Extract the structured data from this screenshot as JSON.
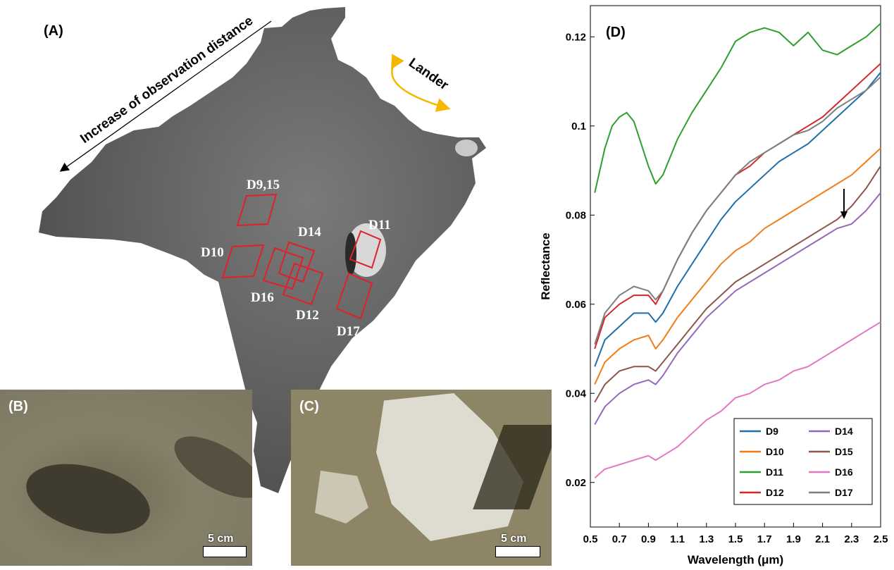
{
  "panels": {
    "a": {
      "label": "(A)",
      "arrow_text": "Increase of observation distance",
      "lander_text": "Lander",
      "region_labels": [
        "D9,15",
        "D14",
        "D11",
        "D10",
        "D16",
        "D12",
        "D17"
      ]
    },
    "b": {
      "label": "(B)",
      "scale_text": "5 cm"
    },
    "c": {
      "label": "(C)",
      "scale_text": "5 cm"
    },
    "d": {
      "label": "(D)"
    }
  },
  "colors": {
    "region_box": "#e0202a",
    "lander_arrow": "#f5b800"
  },
  "chart_data": {
    "type": "line",
    "xlabel": "Wavelength (μm)",
    "ylabel": "Reflectance",
    "xlim": [
      0.5,
      2.5
    ],
    "ylim": [
      0.01,
      0.127
    ],
    "xticks": [
      "0.5",
      "0.7",
      "0.9",
      "1.1",
      "1.3",
      "1.5",
      "1.7",
      "1.9",
      "2.1",
      "2.3",
      "2.5"
    ],
    "yticks": [
      "0.02",
      "0.04",
      "0.06",
      "0.08",
      "0.1",
      "0.12"
    ],
    "legend_position": "bottom-right",
    "annotation": "downward arrow near 2.25 μm on D15",
    "series": [
      {
        "name": "D9",
        "color": "#1f6faa",
        "x": [
          0.53,
          0.6,
          0.7,
          0.8,
          0.9,
          0.95,
          1.0,
          1.1,
          1.2,
          1.3,
          1.4,
          1.5,
          1.6,
          1.7,
          1.8,
          1.9,
          2.0,
          2.1,
          2.2,
          2.3,
          2.4,
          2.5
        ],
        "y": [
          0.046,
          0.052,
          0.055,
          0.058,
          0.058,
          0.056,
          0.058,
          0.064,
          0.069,
          0.074,
          0.079,
          0.083,
          0.086,
          0.089,
          0.092,
          0.094,
          0.096,
          0.099,
          0.102,
          0.105,
          0.108,
          0.112
        ]
      },
      {
        "name": "D10",
        "color": "#f07d1a",
        "x": [
          0.53,
          0.6,
          0.7,
          0.8,
          0.9,
          0.95,
          1.0,
          1.1,
          1.2,
          1.3,
          1.4,
          1.5,
          1.6,
          1.7,
          1.8,
          1.9,
          2.0,
          2.1,
          2.2,
          2.3,
          2.4,
          2.5
        ],
        "y": [
          0.042,
          0.047,
          0.05,
          0.052,
          0.053,
          0.05,
          0.052,
          0.057,
          0.061,
          0.065,
          0.069,
          0.072,
          0.074,
          0.077,
          0.079,
          0.081,
          0.083,
          0.085,
          0.087,
          0.089,
          0.092,
          0.095
        ]
      },
      {
        "name": "D11",
        "color": "#2ca02c",
        "x": [
          0.53,
          0.6,
          0.65,
          0.7,
          0.75,
          0.8,
          0.85,
          0.9,
          0.95,
          1.0,
          1.1,
          1.2,
          1.3,
          1.4,
          1.5,
          1.6,
          1.7,
          1.8,
          1.9,
          2.0,
          2.1,
          2.2,
          2.3,
          2.4,
          2.5
        ],
        "y": [
          0.085,
          0.095,
          0.1,
          0.102,
          0.103,
          0.101,
          0.096,
          0.091,
          0.087,
          0.089,
          0.097,
          0.103,
          0.108,
          0.113,
          0.119,
          0.121,
          0.122,
          0.121,
          0.118,
          0.121,
          0.117,
          0.116,
          0.118,
          0.12,
          0.123
        ]
      },
      {
        "name": "D12",
        "color": "#d62728",
        "x": [
          0.53,
          0.6,
          0.7,
          0.8,
          0.9,
          0.95,
          1.0,
          1.1,
          1.2,
          1.3,
          1.4,
          1.5,
          1.6,
          1.7,
          1.8,
          1.9,
          2.0,
          2.1,
          2.2,
          2.3,
          2.4,
          2.5
        ],
        "y": [
          0.05,
          0.057,
          0.06,
          0.062,
          0.062,
          0.06,
          0.063,
          0.07,
          0.076,
          0.081,
          0.085,
          0.089,
          0.091,
          0.094,
          0.096,
          0.098,
          0.1,
          0.102,
          0.105,
          0.108,
          0.111,
          0.114
        ]
      },
      {
        "name": "D14",
        "color": "#9467bd",
        "x": [
          0.53,
          0.6,
          0.7,
          0.8,
          0.9,
          0.95,
          1.0,
          1.1,
          1.2,
          1.3,
          1.4,
          1.5,
          1.6,
          1.7,
          1.8,
          1.9,
          2.0,
          2.1,
          2.2,
          2.3,
          2.4,
          2.5
        ],
        "y": [
          0.033,
          0.037,
          0.04,
          0.042,
          0.043,
          0.042,
          0.044,
          0.049,
          0.053,
          0.057,
          0.06,
          0.063,
          0.065,
          0.067,
          0.069,
          0.071,
          0.073,
          0.075,
          0.077,
          0.078,
          0.081,
          0.085
        ]
      },
      {
        "name": "D15",
        "color": "#8c564b",
        "x": [
          0.53,
          0.6,
          0.7,
          0.8,
          0.9,
          0.95,
          1.0,
          1.1,
          1.2,
          1.3,
          1.4,
          1.5,
          1.6,
          1.7,
          1.8,
          1.9,
          2.0,
          2.1,
          2.2,
          2.3,
          2.4,
          2.5
        ],
        "y": [
          0.038,
          0.042,
          0.045,
          0.046,
          0.046,
          0.045,
          0.047,
          0.051,
          0.055,
          0.059,
          0.062,
          0.065,
          0.067,
          0.069,
          0.071,
          0.073,
          0.075,
          0.077,
          0.079,
          0.082,
          0.086,
          0.091
        ]
      },
      {
        "name": "D16",
        "color": "#e377c2",
        "x": [
          0.53,
          0.6,
          0.7,
          0.8,
          0.9,
          0.95,
          1.0,
          1.1,
          1.2,
          1.3,
          1.4,
          1.5,
          1.6,
          1.7,
          1.8,
          1.9,
          2.0,
          2.1,
          2.2,
          2.3,
          2.4,
          2.5
        ],
        "y": [
          0.021,
          0.023,
          0.024,
          0.025,
          0.026,
          0.025,
          0.026,
          0.028,
          0.031,
          0.034,
          0.036,
          0.039,
          0.04,
          0.042,
          0.043,
          0.045,
          0.046,
          0.048,
          0.05,
          0.052,
          0.054,
          0.056
        ]
      },
      {
        "name": "D17",
        "color": "#7f7f7f",
        "x": [
          0.53,
          0.6,
          0.7,
          0.8,
          0.9,
          0.95,
          1.0,
          1.1,
          1.2,
          1.3,
          1.4,
          1.5,
          1.6,
          1.7,
          1.8,
          1.9,
          2.0,
          2.1,
          2.2,
          2.3,
          2.4,
          2.5
        ],
        "y": [
          0.051,
          0.058,
          0.062,
          0.064,
          0.063,
          0.061,
          0.063,
          0.07,
          0.076,
          0.081,
          0.085,
          0.089,
          0.092,
          0.094,
          0.096,
          0.098,
          0.099,
          0.101,
          0.104,
          0.106,
          0.108,
          0.111
        ]
      }
    ]
  }
}
